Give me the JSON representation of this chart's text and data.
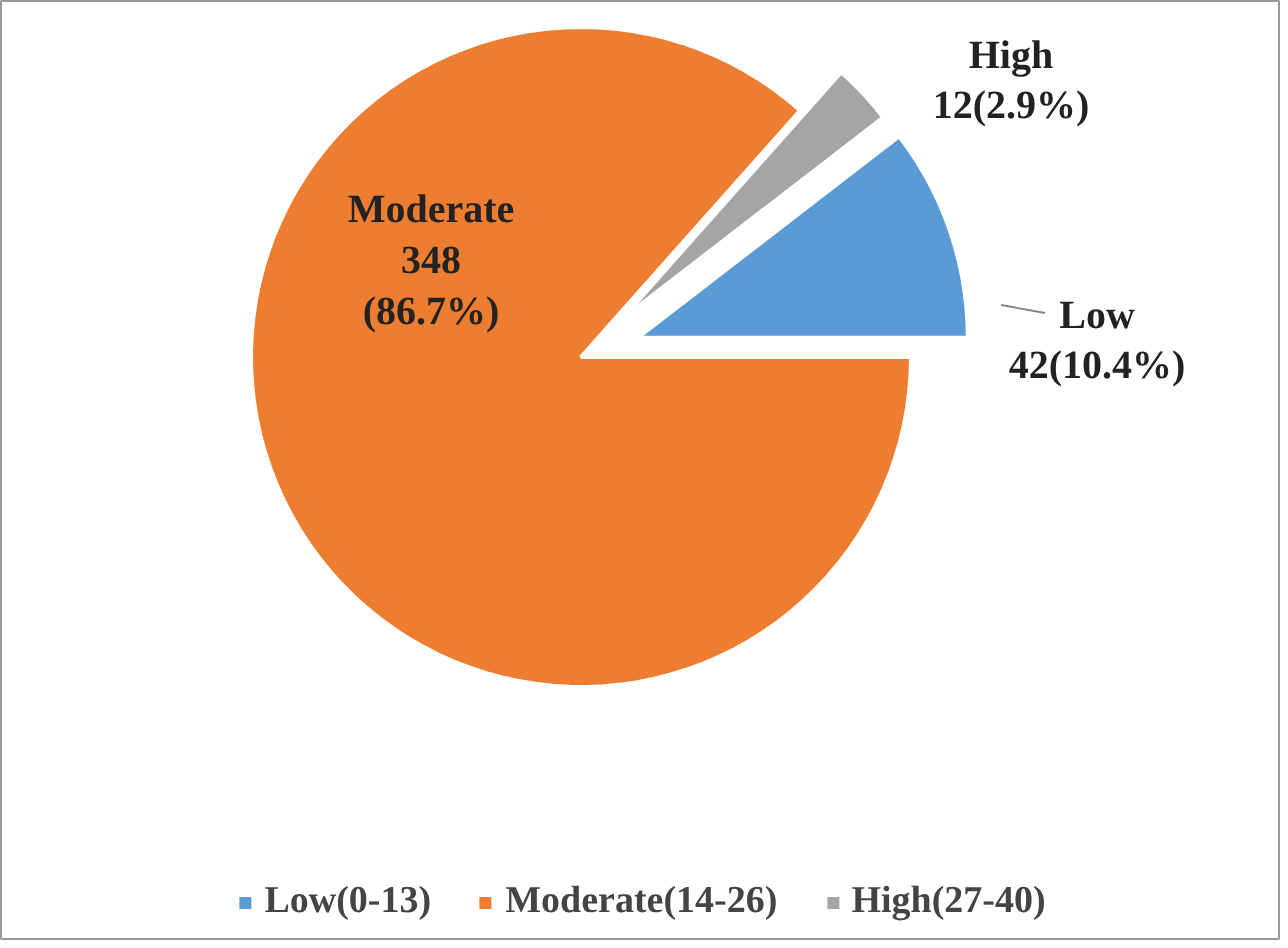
{
  "chart_data": {
    "type": "pie",
    "categories": [
      "Low(0-13)",
      "Moderate(14-26)",
      "High(27-40)"
    ],
    "values": [
      42,
      348,
      12
    ],
    "colors": [
      "#5b9bd5",
      "#ed7d31",
      "#a5a5a5"
    ],
    "value_labels": [
      "Low\n42(10.4%)",
      "Moderate\n348\n(86.7%)",
      "High\n12(2.9%)"
    ],
    "legend": "bottom"
  }
}
